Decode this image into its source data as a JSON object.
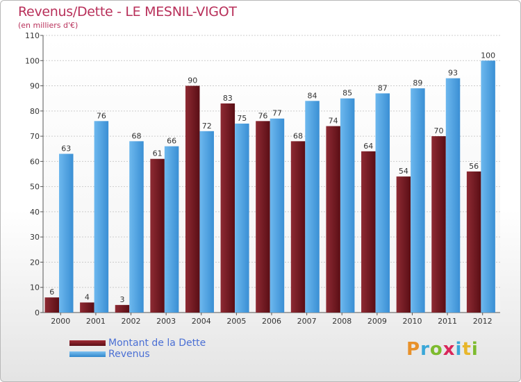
{
  "title": "Revenus/Dette - LE MESNIL-VIGOT",
  "subtitle": "(en milliers d'€)",
  "logo": {
    "text": "Proxiti",
    "letter_colors": [
      "#e8912a",
      "#3aa7d8",
      "#7dbb2e",
      "#d9265a",
      "#3aa7d8",
      "#e8b62a",
      "#7dbb2e"
    ]
  },
  "colors": {
    "series_dette": "#7a1a22",
    "series_revenus": "#4ea3e3",
    "grid": "#cccccc",
    "axis_text": "#333333",
    "title": "#b8305a",
    "legend_text": "#4a6fd4"
  },
  "legend": [
    {
      "label": "Montant de la Dette",
      "color": "#7a1a22"
    },
    {
      "label": "Revenus",
      "color": "#4ea3e3"
    }
  ],
  "chart_data": {
    "type": "bar",
    "title": "Revenus/Dette - LE MESNIL-VIGOT",
    "subtitle": "(en milliers d'€)",
    "categories": [
      "2000",
      "2001",
      "2002",
      "2003",
      "2004",
      "2005",
      "2006",
      "2007",
      "2008",
      "2009",
      "2010",
      "2011",
      "2012"
    ],
    "series": [
      {
        "name": "Montant de la Dette",
        "values": [
          6,
          4,
          3,
          61,
          90,
          83,
          76,
          68,
          74,
          64,
          54,
          70,
          56
        ]
      },
      {
        "name": "Revenus",
        "values": [
          63,
          76,
          68,
          66,
          72,
          75,
          77,
          84,
          85,
          87,
          89,
          93,
          100
        ]
      }
    ],
    "ylim": [
      0,
      110
    ],
    "yticks": [
      0,
      10,
      20,
      30,
      40,
      50,
      60,
      70,
      80,
      90,
      100,
      110
    ],
    "grid": true,
    "legend_position": "bottom-left"
  }
}
